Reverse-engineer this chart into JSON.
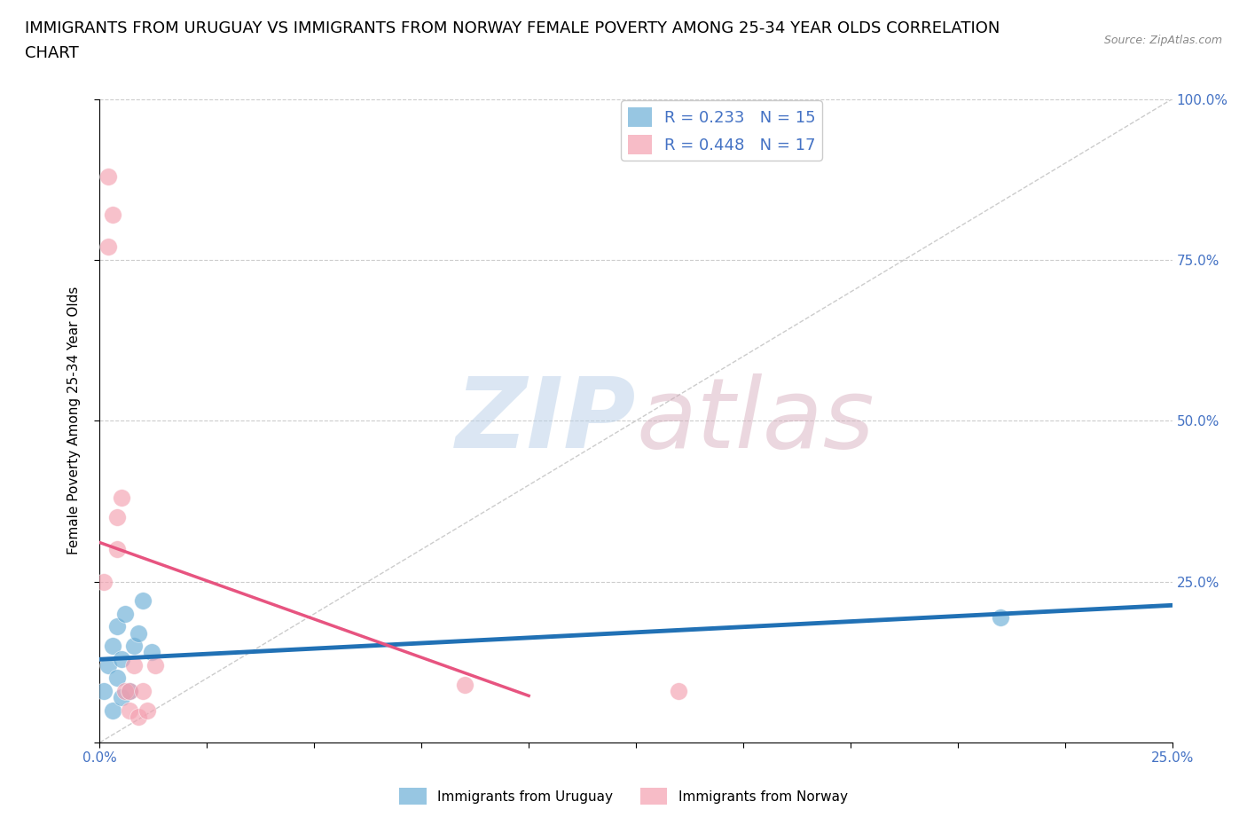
{
  "title_line1": "IMMIGRANTS FROM URUGUAY VS IMMIGRANTS FROM NORWAY FEMALE POVERTY AMONG 25-34 YEAR OLDS CORRELATION",
  "title_line2": "CHART",
  "source_text": "Source: ZipAtlas.com",
  "ylabel": "Female Poverty Among 25-34 Year Olds",
  "xlim": [
    0.0,
    0.25
  ],
  "ylim": [
    0.0,
    1.0
  ],
  "xtick_labels": [
    "0.0%",
    "25.0%"
  ],
  "xtick_positions": [
    0.0,
    0.25
  ],
  "ytick_labels": [
    "25.0%",
    "50.0%",
    "75.0%",
    "100.0%"
  ],
  "ytick_positions": [
    0.25,
    0.5,
    0.75,
    1.0
  ],
  "uruguay_color": "#6baed6",
  "norway_color": "#f4a0b0",
  "uruguay_R": 0.233,
  "uruguay_N": 15,
  "norway_R": 0.448,
  "norway_N": 17,
  "trend_line_color_uruguay": "#2171b5",
  "trend_line_color_norway": "#e75480",
  "watermark_zip": "ZIP",
  "watermark_atlas": "atlas",
  "background_color": "#ffffff",
  "grid_color": "#cccccc",
  "title_fontsize": 13,
  "axis_label_fontsize": 11,
  "tick_label_color": "#4472c4",
  "legend_R_color": "#4472c4",
  "uruguay_x": [
    0.001,
    0.002,
    0.003,
    0.003,
    0.004,
    0.004,
    0.005,
    0.005,
    0.006,
    0.007,
    0.008,
    0.009,
    0.01,
    0.012,
    0.21
  ],
  "uruguay_y": [
    0.08,
    0.12,
    0.05,
    0.15,
    0.1,
    0.18,
    0.07,
    0.13,
    0.2,
    0.08,
    0.15,
    0.17,
    0.22,
    0.14,
    0.195
  ],
  "norway_x": [
    0.001,
    0.002,
    0.002,
    0.003,
    0.004,
    0.004,
    0.005,
    0.006,
    0.007,
    0.007,
    0.008,
    0.009,
    0.01,
    0.011,
    0.013,
    0.085,
    0.135
  ],
  "norway_y": [
    0.25,
    0.77,
    0.88,
    0.82,
    0.35,
    0.3,
    0.38,
    0.08,
    0.05,
    0.08,
    0.12,
    0.04,
    0.08,
    0.05,
    0.12,
    0.09,
    0.08
  ]
}
